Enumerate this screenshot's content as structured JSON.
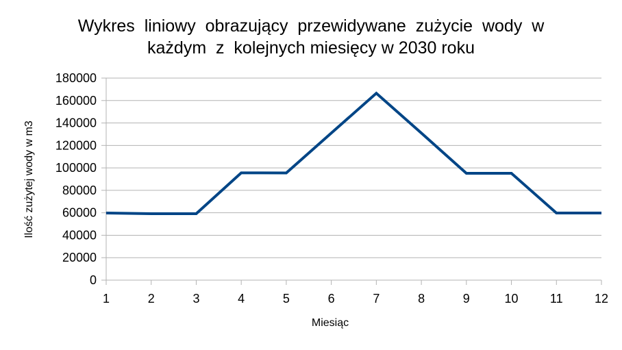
{
  "chart_data": {
    "type": "line",
    "title_lines": [
      "Wykres  liniowy  obrazujący  przewidywane  zużycie  wody  w",
      "każdym  z  kolejnych miesięcy w 2030 roku"
    ],
    "xlabel": "Miesiąc",
    "ylabel": "Ilość zużytej wody w m3",
    "x": [
      1,
      2,
      3,
      4,
      5,
      6,
      7,
      8,
      9,
      10,
      11,
      12
    ],
    "x_tick_labels": [
      "1",
      "2",
      "3",
      "4",
      "5",
      "6",
      "7",
      "8",
      "9",
      "10",
      "11",
      "12"
    ],
    "xlim": [
      1,
      12
    ],
    "ylim": [
      0,
      180000
    ],
    "y_ticks": [
      0,
      20000,
      40000,
      60000,
      80000,
      100000,
      120000,
      140000,
      160000,
      180000
    ],
    "series": [
      {
        "values": [
          59800,
          59200,
          59200,
          95600,
          95500,
          131000,
          166500,
          131000,
          95200,
          95200,
          59800,
          59800
        ],
        "color": "#004586"
      }
    ],
    "grid": true,
    "legend": "none"
  }
}
